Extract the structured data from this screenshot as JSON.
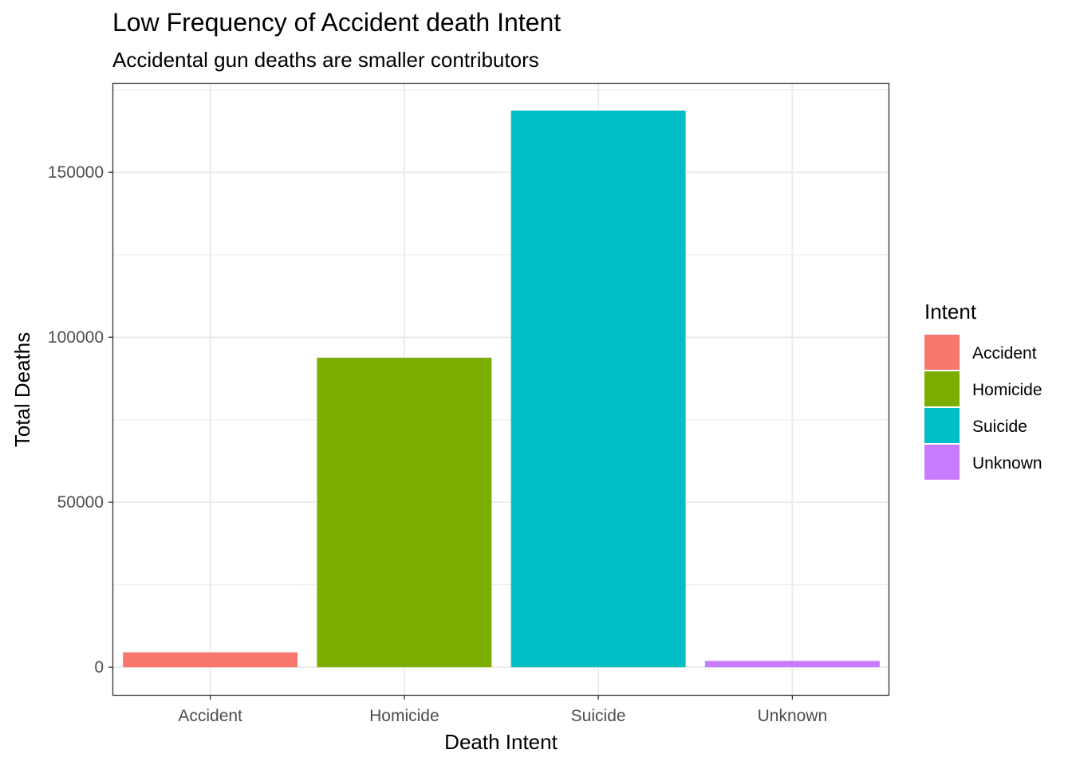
{
  "chart_data": {
    "type": "bar",
    "title": "Low Frequency of Accident death Intent",
    "subtitle": "Accidental gun deaths are smaller contributors",
    "xlabel": "Death Intent",
    "ylabel": "Total Deaths",
    "categories": [
      "Accident",
      "Homicide",
      "Suicide",
      "Unknown"
    ],
    "values": [
      4500,
      93800,
      168700,
      1900
    ],
    "colors": [
      "#F8766D",
      "#7CAE00",
      "#00BFC4",
      "#C77CFF"
    ],
    "ylim": [
      -8400,
      177100
    ],
    "yticks": [
      0,
      50000,
      100000,
      150000
    ],
    "ytick_labels": [
      "0",
      "50000",
      "100000",
      "150000"
    ],
    "grid": true,
    "legend": {
      "title": "Intent",
      "position": "right",
      "items": [
        "Accident",
        "Homicide",
        "Suicide",
        "Unknown"
      ]
    }
  }
}
